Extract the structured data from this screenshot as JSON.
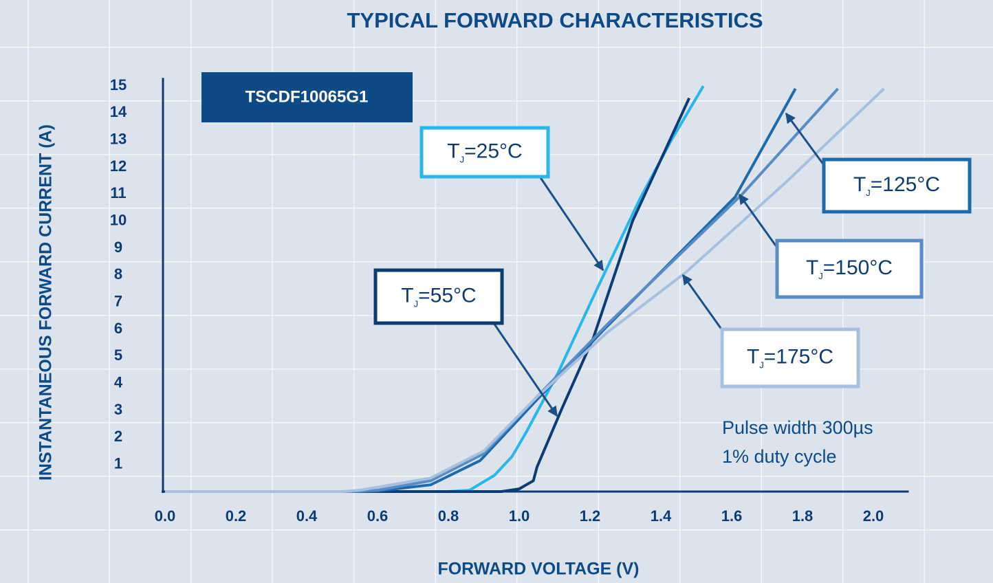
{
  "chart_data": {
    "type": "line",
    "title": "TYPICAL FORWARD CHARACTERISTICS",
    "xlabel": "FORWARD VOLTAGE (V)",
    "ylabel": "INSTANTANEOUS FORWARD CURRENT (A)",
    "annotations": [
      "TSCDF10065G1",
      "Pulse width 300µs",
      "1% duty cycle"
    ],
    "xlim": [
      0,
      2.1
    ],
    "xticks": [
      {
        "value": 0,
        "label": "0.0"
      },
      0.2,
      0.4,
      0.6,
      0.8,
      {
        "value": 1,
        "label": "1.0"
      },
      1.2,
      1.4,
      1.6,
      1.8,
      {
        "value": 2,
        "label": "2.0"
      }
    ],
    "ylim": [
      0,
      15.3
    ],
    "yticks": [
      1,
      2,
      3,
      4,
      5,
      6,
      7,
      8,
      9,
      10,
      11,
      12,
      13,
      14,
      15
    ],
    "series": [
      {
        "name": "TJ=25°C",
        "color": "#29b6e8",
        "x": [
          0,
          0.8,
          0.86,
          0.93,
          0.98,
          1.02,
          1.11,
          1.22,
          1.34,
          1.43,
          1.52
        ],
        "values": [
          0,
          0,
          0.05,
          0.6,
          1.3,
          2.2,
          4.4,
          7.5,
          10.8,
          13,
          15
        ]
      },
      {
        "name": "TJ=55°C",
        "color": "#0d3b73",
        "x": [
          0,
          0.95,
          1.0,
          1.04,
          1.05,
          1.12,
          1.21,
          1.32,
          1.48
        ],
        "values": [
          0,
          0,
          0.1,
          0.4,
          0.9,
          3.05,
          5.7,
          10,
          14.55
        ]
      },
      {
        "name": "TJ=125°C",
        "color": "#1f6aab",
        "x": [
          0,
          0.55,
          0.6,
          0.75,
          0.89,
          1.05,
          1.24,
          1.61,
          1.78
        ],
        "values": [
          0,
          0,
          0.02,
          0.25,
          1.15,
          3.4,
          6,
          10.9,
          14.9
        ]
      },
      {
        "name": "TJ=150°C",
        "color": "#5a8cc4",
        "x": [
          0,
          0.52,
          0.6,
          0.75,
          0.9,
          1.05,
          1.25,
          1.63,
          1.9
        ],
        "values": [
          0,
          0,
          0.05,
          0.4,
          1.4,
          3.5,
          6.2,
          11,
          14.9
        ]
      },
      {
        "name": "TJ=175°C",
        "color": "#a7c0e0",
        "x": [
          0,
          0.5,
          0.55,
          0.75,
          0.9,
          1.05,
          1.25,
          1.47,
          1.75,
          2.03
        ],
        "values": [
          0,
          0,
          0.05,
          0.5,
          1.5,
          3.5,
          5.9,
          8.1,
          11.4,
          14.9
        ]
      }
    ]
  }
}
